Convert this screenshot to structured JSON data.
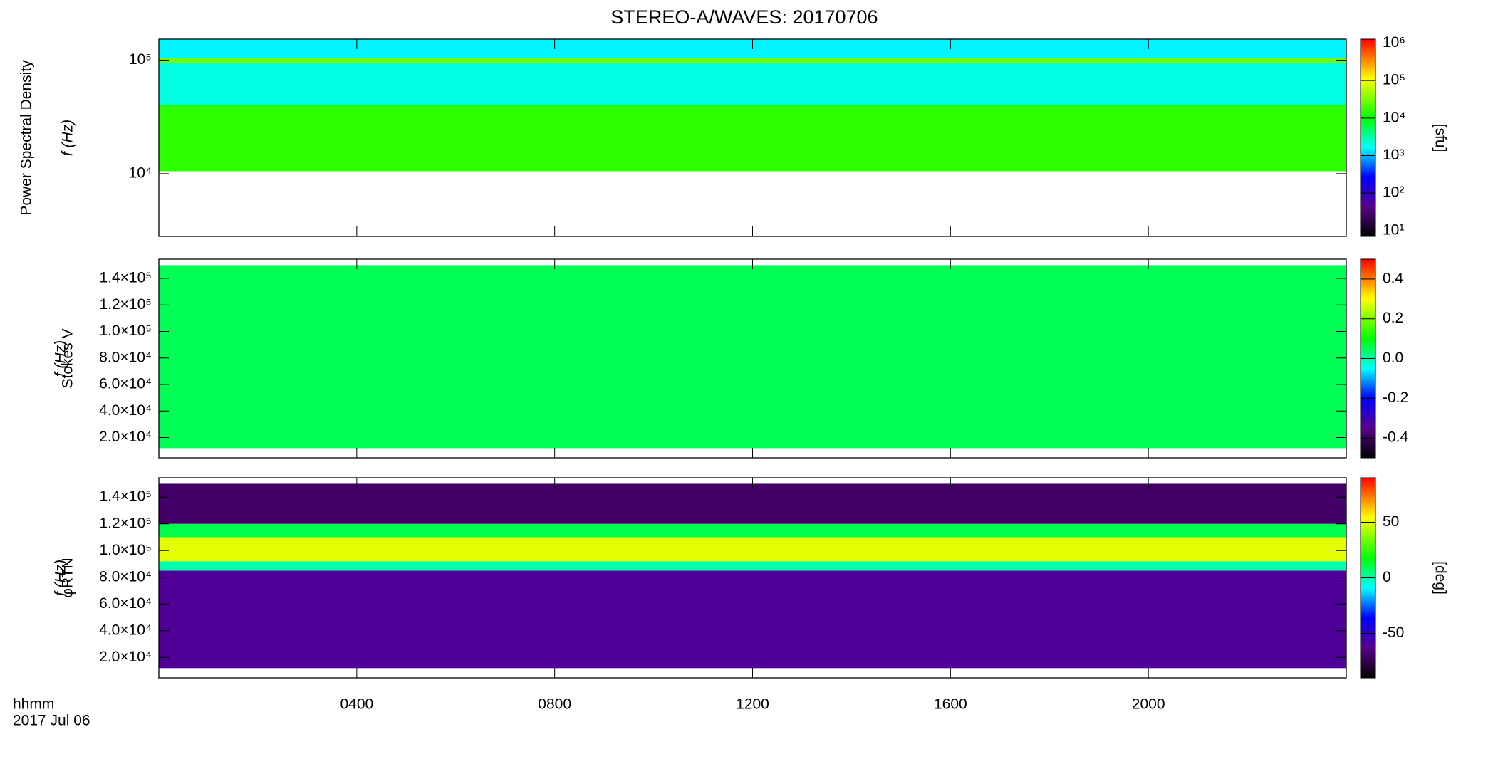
{
  "chart_data": {
    "type": "heatmap",
    "title": "STEREO-A/WAVES: 20170706",
    "x_label": "hhmm",
    "date": "2017 Jul 06",
    "xlim": [
      0,
      24
    ],
    "xticks": [
      {
        "value": 4,
        "label": "0400"
      },
      {
        "value": 8,
        "label": "0800"
      },
      {
        "value": 12,
        "label": "1200"
      },
      {
        "value": 16,
        "label": "1600"
      },
      {
        "value": 20,
        "label": "2000"
      }
    ],
    "panels": [
      {
        "ylabel": [
          "Power Spectral Density",
          "f (Hz)"
        ],
        "yscale": "log",
        "ylim": [
          2800,
          153000
        ],
        "yticks": [
          {
            "value": 10000,
            "label": "10⁴"
          },
          {
            "value": 100000,
            "label": "10⁵"
          }
        ],
        "bins": [
          10500,
          40000,
          95000,
          105000,
          153000
        ],
        "values": [
          15000,
          2000,
          30000,
          1500
        ],
        "cscale": "log",
        "clim": [
          7,
          1270000
        ],
        "clabel": "[sfu]",
        "cticks": [
          {
            "value": 10,
            "label": "10¹"
          },
          {
            "value": 100,
            "label": "10²"
          },
          {
            "value": 1000,
            "label": "10³"
          },
          {
            "value": 10000,
            "label": "10⁴"
          },
          {
            "value": 100000,
            "label": "10⁵"
          },
          {
            "value": 1000000,
            "label": "10⁶"
          }
        ]
      },
      {
        "ylabel": [
          "Stokes V",
          "f (Hz)"
        ],
        "yscale": "linear",
        "ylim": [
          4700,
          154500
        ],
        "yticks": [
          {
            "value": 20000,
            "label": "2.0×10⁴"
          },
          {
            "value": 40000,
            "label": "4.0×10⁴"
          },
          {
            "value": 60000,
            "label": "6.0×10⁴"
          },
          {
            "value": 80000,
            "label": "8.0×10⁴"
          },
          {
            "value": 100000,
            "label": "1.0×10⁵"
          },
          {
            "value": 120000,
            "label": "1.2×10⁵"
          },
          {
            "value": 140000,
            "label": "1.4×10⁵"
          }
        ],
        "bins": [
          12000,
          150000
        ],
        "values": [
          0.05
        ],
        "cscale": "linear",
        "clim": [
          -0.5,
          0.5
        ],
        "cticks": [
          -0.4,
          -0.2,
          {
            "value": 0,
            "label": "0.0"
          },
          0.2,
          0.4
        ]
      },
      {
        "ylabel": [
          "φRTN",
          "f (Hz)"
        ],
        "yscale": "linear",
        "ylim": [
          4700,
          154500
        ],
        "yticks": [
          {
            "value": 20000,
            "label": "2.0×10⁴"
          },
          {
            "value": 40000,
            "label": "4.0×10⁴"
          },
          {
            "value": 60000,
            "label": "6.0×10⁴"
          },
          {
            "value": 80000,
            "label": "8.0×10⁴"
          },
          {
            "value": 100000,
            "label": "1.0×10⁵"
          },
          {
            "value": 120000,
            "label": "1.2×10⁵"
          },
          {
            "value": 140000,
            "label": "1.4×10⁵"
          }
        ],
        "bins": [
          12000,
          85000,
          92000,
          110000,
          120000,
          150000
        ],
        "values": [
          -60,
          0,
          50,
          10,
          -70
        ],
        "cscale": "linear",
        "clim": [
          -90,
          90
        ],
        "clabel": "[deg]",
        "cticks": [
          -50,
          0,
          50
        ]
      }
    ]
  }
}
